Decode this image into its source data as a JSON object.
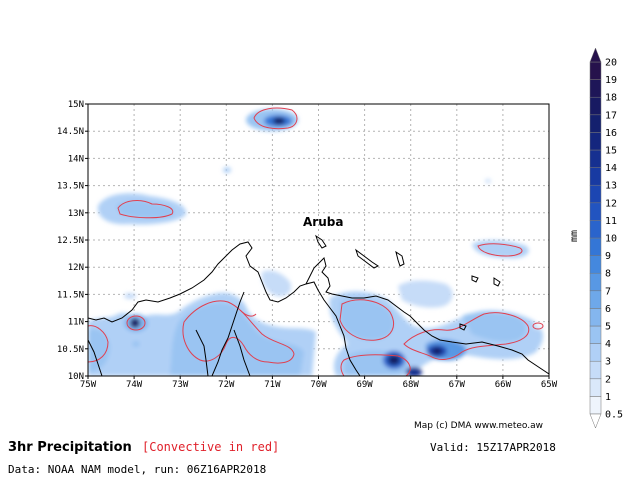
{
  "map": {
    "title": "3hr Precipitation",
    "subtitle": "[Convective in red]",
    "valid": "Valid: 15Z17APR2018",
    "credit": "Map (c) DMA www.meteo.aw",
    "data_source": "Data: NOAA NAM model, run: 06Z16APR2018",
    "place_label": "Aruba",
    "lon_ticks": [
      "75W",
      "74W",
      "73W",
      "72W",
      "71W",
      "70W",
      "69W",
      "68W",
      "67W",
      "66W",
      "65W"
    ],
    "lat_ticks": [
      "10N",
      "10.5N",
      "11N",
      "11.5N",
      "12N",
      "12.5N",
      "13N",
      "13.5N",
      "14N",
      "14.5N",
      "15N"
    ],
    "colorbar": {
      "unit": "mm",
      "levels": [
        "0.5",
        "1",
        "2",
        "3",
        "4",
        "5",
        "6",
        "7",
        "8",
        "9",
        "10",
        "11",
        "12",
        "13",
        "14",
        "15",
        "16",
        "17",
        "18",
        "19",
        "20"
      ],
      "colors": [
        "#eef4fc",
        "#dae8fa",
        "#c6dcf8",
        "#b0d0f6",
        "#9ac4f2",
        "#84b6ee",
        "#6ea8ea",
        "#5898e4",
        "#4488de",
        "#3476d6",
        "#2a64cc",
        "#2254c0",
        "#1c46b2",
        "#183aa2",
        "#163090",
        "#14267e",
        "#14206e",
        "#181a62",
        "#1e1658",
        "#26124c"
      ],
      "convective_color": "#e04050"
    }
  }
}
